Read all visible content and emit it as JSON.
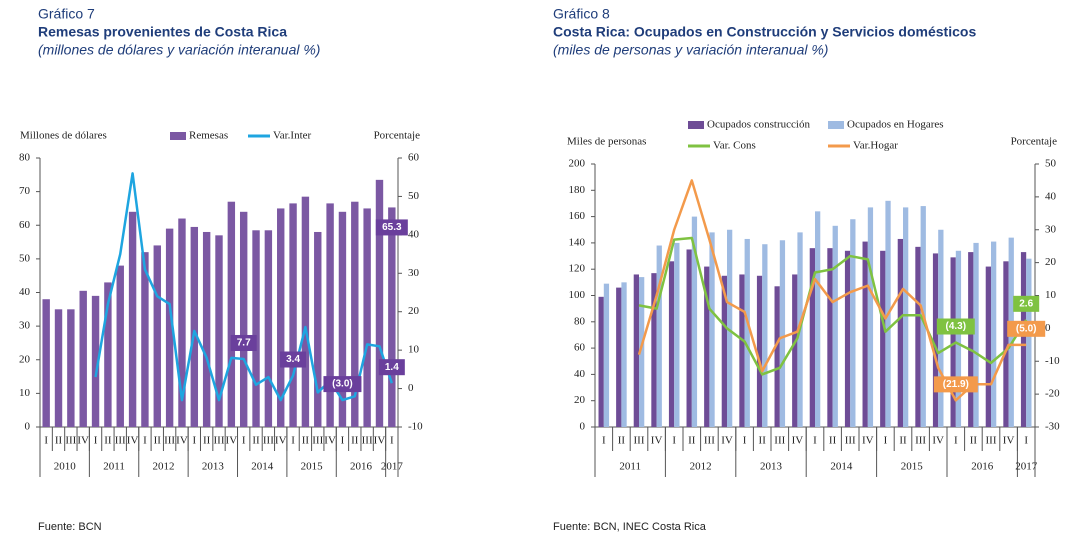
{
  "chart_data": [
    {
      "type": "bar",
      "label": "Gráfico 7",
      "title": "Remesas provenientes de Costa Rica",
      "subtitle": "(millones de dólares y variación interanual %)",
      "source": "Fuente: BCN",
      "ylabel": "Millones de dólares",
      "y2label": "Porcentaje",
      "categories": [
        "I",
        "II",
        "III",
        "IV",
        "I",
        "II",
        "III",
        "IV",
        "I",
        "II",
        "III",
        "IV",
        "I",
        "II",
        "III",
        "IV",
        "I",
        "II",
        "III",
        "IV",
        "I",
        "II",
        "III",
        "IV",
        "I",
        "II",
        "III",
        "IV",
        "I"
      ],
      "x_groups": [
        "2010",
        "2011",
        "2012",
        "2013",
        "2014",
        "2015",
        "2016",
        "2017"
      ],
      "ylim": [
        0,
        80
      ],
      "yticks": [
        0,
        10,
        20,
        30,
        40,
        50,
        60,
        70,
        80
      ],
      "y2lim": [
        -10,
        60
      ],
      "y2ticks": [
        -10,
        0,
        10,
        20,
        30,
        40,
        50,
        60
      ],
      "series": [
        {
          "name": "Remesas",
          "type": "bar",
          "color": "#7b58a3",
          "values": [
            38,
            35,
            35,
            40.5,
            39,
            43,
            48,
            64,
            52,
            54,
            59,
            62,
            59.5,
            58,
            57,
            67,
            64,
            58.5,
            58.5,
            65,
            66.5,
            68.5,
            58,
            66.5,
            64,
            67,
            65,
            73.5,
            65.3
          ],
          "value_labels": [
            null,
            null,
            null,
            null,
            null,
            null,
            null,
            null,
            null,
            null,
            null,
            null,
            null,
            null,
            null,
            null,
            null,
            null,
            null,
            null,
            null,
            null,
            null,
            null,
            null,
            null,
            null,
            null,
            "65.3"
          ]
        },
        {
          "name": "Var.Inter",
          "type": "line",
          "axis": "y2",
          "color": "#1ea5e0",
          "values": [
            null,
            null,
            null,
            null,
            3,
            22,
            35,
            56,
            31,
            24,
            22,
            -3,
            15,
            8,
            -3,
            8,
            7.7,
            1,
            3,
            -3,
            3.4,
            16,
            -1,
            2,
            -3.0,
            -2,
            11.5,
            11,
            1.4
          ],
          "value_labels": [
            null,
            null,
            null,
            null,
            null,
            null,
            null,
            null,
            null,
            null,
            null,
            null,
            null,
            null,
            null,
            null,
            "7.7",
            null,
            null,
            null,
            "3.4",
            null,
            null,
            null,
            "(3.0)",
            null,
            null,
            null,
            "1.4"
          ]
        }
      ]
    },
    {
      "type": "bar",
      "label": "Gráfico 8",
      "title": "Costa Rica: Ocupados en Construcción y Servicios domésticos",
      "subtitle": "(miles de personas y variación interanual %)",
      "source": "Fuente: BCN, INEC Costa Rica",
      "ylabel": "Miles de personas",
      "y2label": "Porcentaje",
      "categories": [
        "I",
        "II",
        "III",
        "IV",
        "I",
        "II",
        "III",
        "IV",
        "I",
        "II",
        "III",
        "IV",
        "I",
        "II",
        "III",
        "IV",
        "I",
        "II",
        "III",
        "IV",
        "I",
        "II",
        "III",
        "IV",
        "I"
      ],
      "x_groups": [
        "2011",
        "2012",
        "2013",
        "2014",
        "2015",
        "2016",
        "2017"
      ],
      "ylim": [
        0,
        200
      ],
      "yticks": [
        0,
        20,
        40,
        60,
        80,
        100,
        120,
        140,
        160,
        180,
        200
      ],
      "y2lim": [
        -30,
        50
      ],
      "y2ticks": [
        -30,
        -20,
        -10,
        0,
        10,
        20,
        30,
        40,
        50
      ],
      "series": [
        {
          "name": "Ocupados construcción",
          "type": "bar",
          "color": "#6e4c96",
          "values": [
            99,
            106,
            116,
            117,
            126,
            135,
            122,
            115,
            116,
            115,
            107,
            116,
            136,
            136,
            134,
            141,
            134,
            143,
            137,
            132,
            129,
            133,
            122,
            126,
            133
          ]
        },
        {
          "name": "Ocupados en Hogares",
          "type": "bar",
          "color": "#9fbbe2",
          "values": [
            109,
            110,
            114,
            138,
            140,
            160,
            148,
            150,
            143,
            139,
            142,
            148,
            164,
            153,
            158,
            167,
            172,
            167,
            168,
            150,
            134,
            140,
            141,
            144,
            128
          ]
        },
        {
          "name": "Var. Cons",
          "type": "line",
          "axis": "y2",
          "color": "#7fc241",
          "values": [
            null,
            null,
            7,
            6,
            27,
            27.5,
            6,
            0,
            -4,
            -14,
            -12,
            -3,
            17,
            18,
            22,
            21,
            -1,
            4,
            4,
            -7.5,
            -4.3,
            -7,
            -10.5,
            -6,
            2.6
          ],
          "value_labels": [
            null,
            null,
            null,
            null,
            null,
            null,
            null,
            null,
            null,
            null,
            null,
            null,
            null,
            null,
            null,
            null,
            null,
            null,
            null,
            null,
            "(4.3)",
            null,
            null,
            null,
            "2.6"
          ]
        },
        {
          "name": "Var.Hogar",
          "type": "line",
          "axis": "y2",
          "color": "#f39a4b",
          "values": [
            null,
            null,
            -8,
            10,
            30,
            45,
            27,
            8,
            5,
            -13,
            -3,
            -1,
            15,
            8,
            11,
            13,
            3,
            12,
            7,
            -12,
            -21.9,
            -17,
            -17,
            -5,
            -5.0
          ],
          "value_labels": [
            null,
            null,
            null,
            null,
            null,
            null,
            null,
            null,
            null,
            null,
            null,
            null,
            null,
            null,
            null,
            null,
            null,
            null,
            null,
            null,
            "(21.9)",
            null,
            null,
            null,
            "(5.0)"
          ]
        }
      ]
    }
  ]
}
